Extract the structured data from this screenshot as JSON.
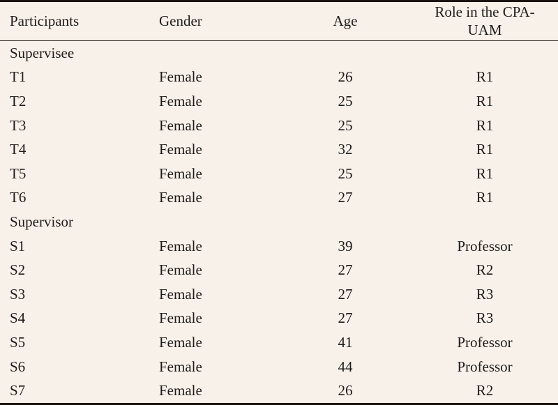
{
  "colors": {
    "background": "#f7f1ea",
    "text": "#1f1b18",
    "rule": "#191310"
  },
  "table": {
    "column_keys": [
      "participant",
      "gender",
      "age",
      "role"
    ],
    "columns": [
      {
        "label": "Participants",
        "align": "left"
      },
      {
        "label": "Gender",
        "align": "left"
      },
      {
        "label": "Age",
        "align": "center"
      },
      {
        "label": "Role in the CPA-UAM",
        "align": "center"
      }
    ],
    "sections": [
      {
        "group": "Supervisee",
        "rows": [
          [
            "T1",
            "Female",
            "26",
            "R1"
          ],
          [
            "T2",
            "Female",
            "25",
            "R1"
          ],
          [
            "T3",
            "Female",
            "25",
            "R1"
          ],
          [
            "T4",
            "Female",
            "32",
            "R1"
          ],
          [
            "T5",
            "Female",
            "25",
            "R1"
          ],
          [
            "T6",
            "Female",
            "27",
            "R1"
          ]
        ]
      },
      {
        "group": "Supervisor",
        "rows": [
          [
            "S1",
            "Female",
            "39",
            "Professor"
          ],
          [
            "S2",
            "Female",
            "27",
            "R2"
          ],
          [
            "S3",
            "Female",
            "27",
            "R3"
          ],
          [
            "S4",
            "Female",
            "27",
            "R3"
          ],
          [
            "S5",
            "Female",
            "41",
            "Professor"
          ],
          [
            "S6",
            "Female",
            "44",
            "Professor"
          ],
          [
            "S7",
            "Female",
            "26",
            "R2"
          ]
        ]
      }
    ]
  }
}
